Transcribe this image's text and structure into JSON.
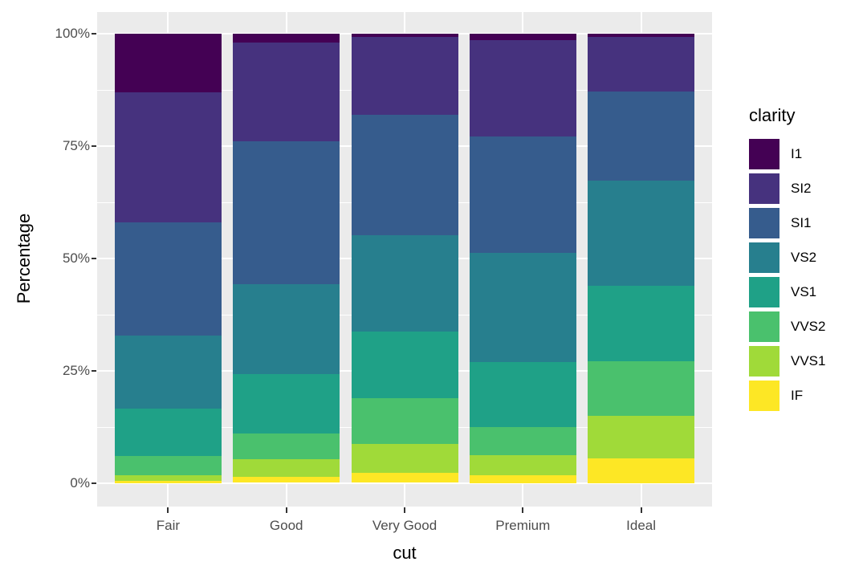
{
  "colors": {
    "figure_background": "#FFFFFF",
    "panel_background": "#EBEBEB",
    "grid": "#FFFFFF",
    "tick_text": "#4D4D4D",
    "tick_mark": "#333333",
    "axis_title": "#000000",
    "legend_text": "#000000"
  },
  "chart_data": {
    "type": "bar",
    "stacked": true,
    "percent": true,
    "title": "",
    "xlabel": "cut",
    "ylabel": "Percentage",
    "categories": [
      "Fair",
      "Good",
      "Very Good",
      "Premium",
      "Ideal"
    ],
    "y_ticks": {
      "labels": [
        "0%",
        "25%",
        "50%",
        "75%",
        "100%"
      ],
      "values": [
        0,
        25,
        50,
        75,
        100
      ]
    },
    "y_minor_gridlines": [
      12.5,
      37.5,
      62.5,
      87.5
    ],
    "ylim": [
      0,
      100
    ],
    "grid": true,
    "legend_title": "clarity",
    "legend_position": "right",
    "stack_order_top_to_bottom": [
      "I1",
      "SI2",
      "SI1",
      "VS2",
      "VS1",
      "VVS2",
      "VVS1",
      "IF"
    ],
    "series": [
      {
        "name": "I1",
        "color": "#440154",
        "values": [
          13.0,
          2.0,
          0.7,
          1.5,
          0.7
        ]
      },
      {
        "name": "SI2",
        "color": "#46327E",
        "values": [
          28.9,
          22.0,
          17.4,
          21.4,
          12.1
        ]
      },
      {
        "name": "SI1",
        "color": "#365C8D",
        "values": [
          25.3,
          31.8,
          26.8,
          25.9,
          19.9
        ]
      },
      {
        "name": "VS2",
        "color": "#277F8E",
        "values": [
          16.2,
          19.9,
          21.4,
          24.3,
          23.5
        ]
      },
      {
        "name": "VS1",
        "color": "#1FA187",
        "values": [
          10.6,
          13.2,
          14.7,
          14.4,
          16.7
        ]
      },
      {
        "name": "VVS2",
        "color": "#4AC16D",
        "values": [
          4.3,
          5.8,
          10.2,
          6.3,
          12.1
        ]
      },
      {
        "name": "VVS1",
        "color": "#A0DA39",
        "values": [
          1.1,
          3.8,
          6.5,
          4.5,
          9.5
        ]
      },
      {
        "name": "IF",
        "color": "#FDE725",
        "values": [
          0.6,
          1.4,
          2.2,
          1.7,
          5.6
        ]
      }
    ]
  }
}
